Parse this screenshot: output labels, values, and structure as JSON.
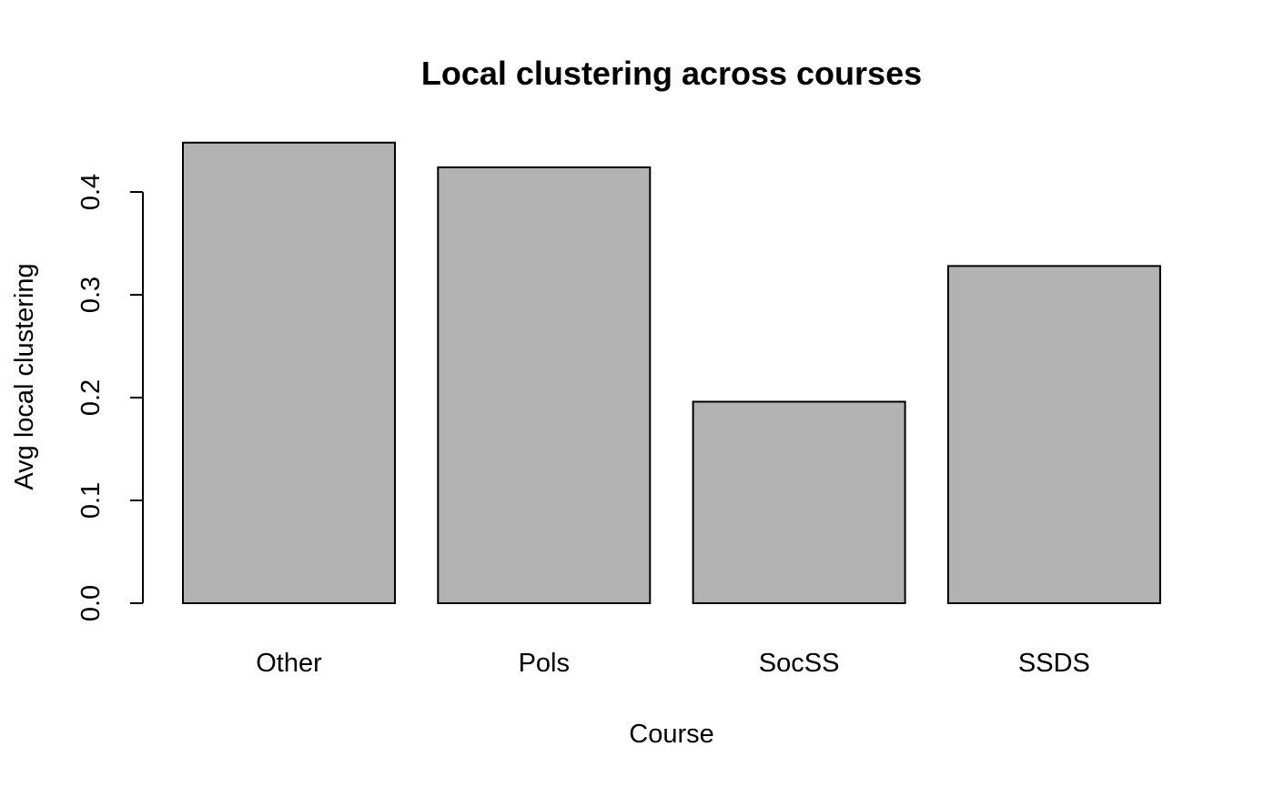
{
  "chart_data": {
    "type": "bar",
    "title": "Local clustering across courses",
    "xlabel": "Course",
    "ylabel": "Avg local clustering",
    "categories": [
      "Other",
      "Pols",
      "SocSS",
      "SSDS"
    ],
    "values": [
      0.448,
      0.424,
      0.196,
      0.328
    ],
    "ylim": [
      0,
      0.45
    ],
    "yticks": [
      0.0,
      0.1,
      0.2,
      0.3,
      0.4
    ],
    "ytick_labels": [
      "0.0",
      "0.1",
      "0.2",
      "0.3",
      "0.4"
    ],
    "bar_color": "#b2b2b2",
    "grid": false,
    "legend": "none"
  }
}
